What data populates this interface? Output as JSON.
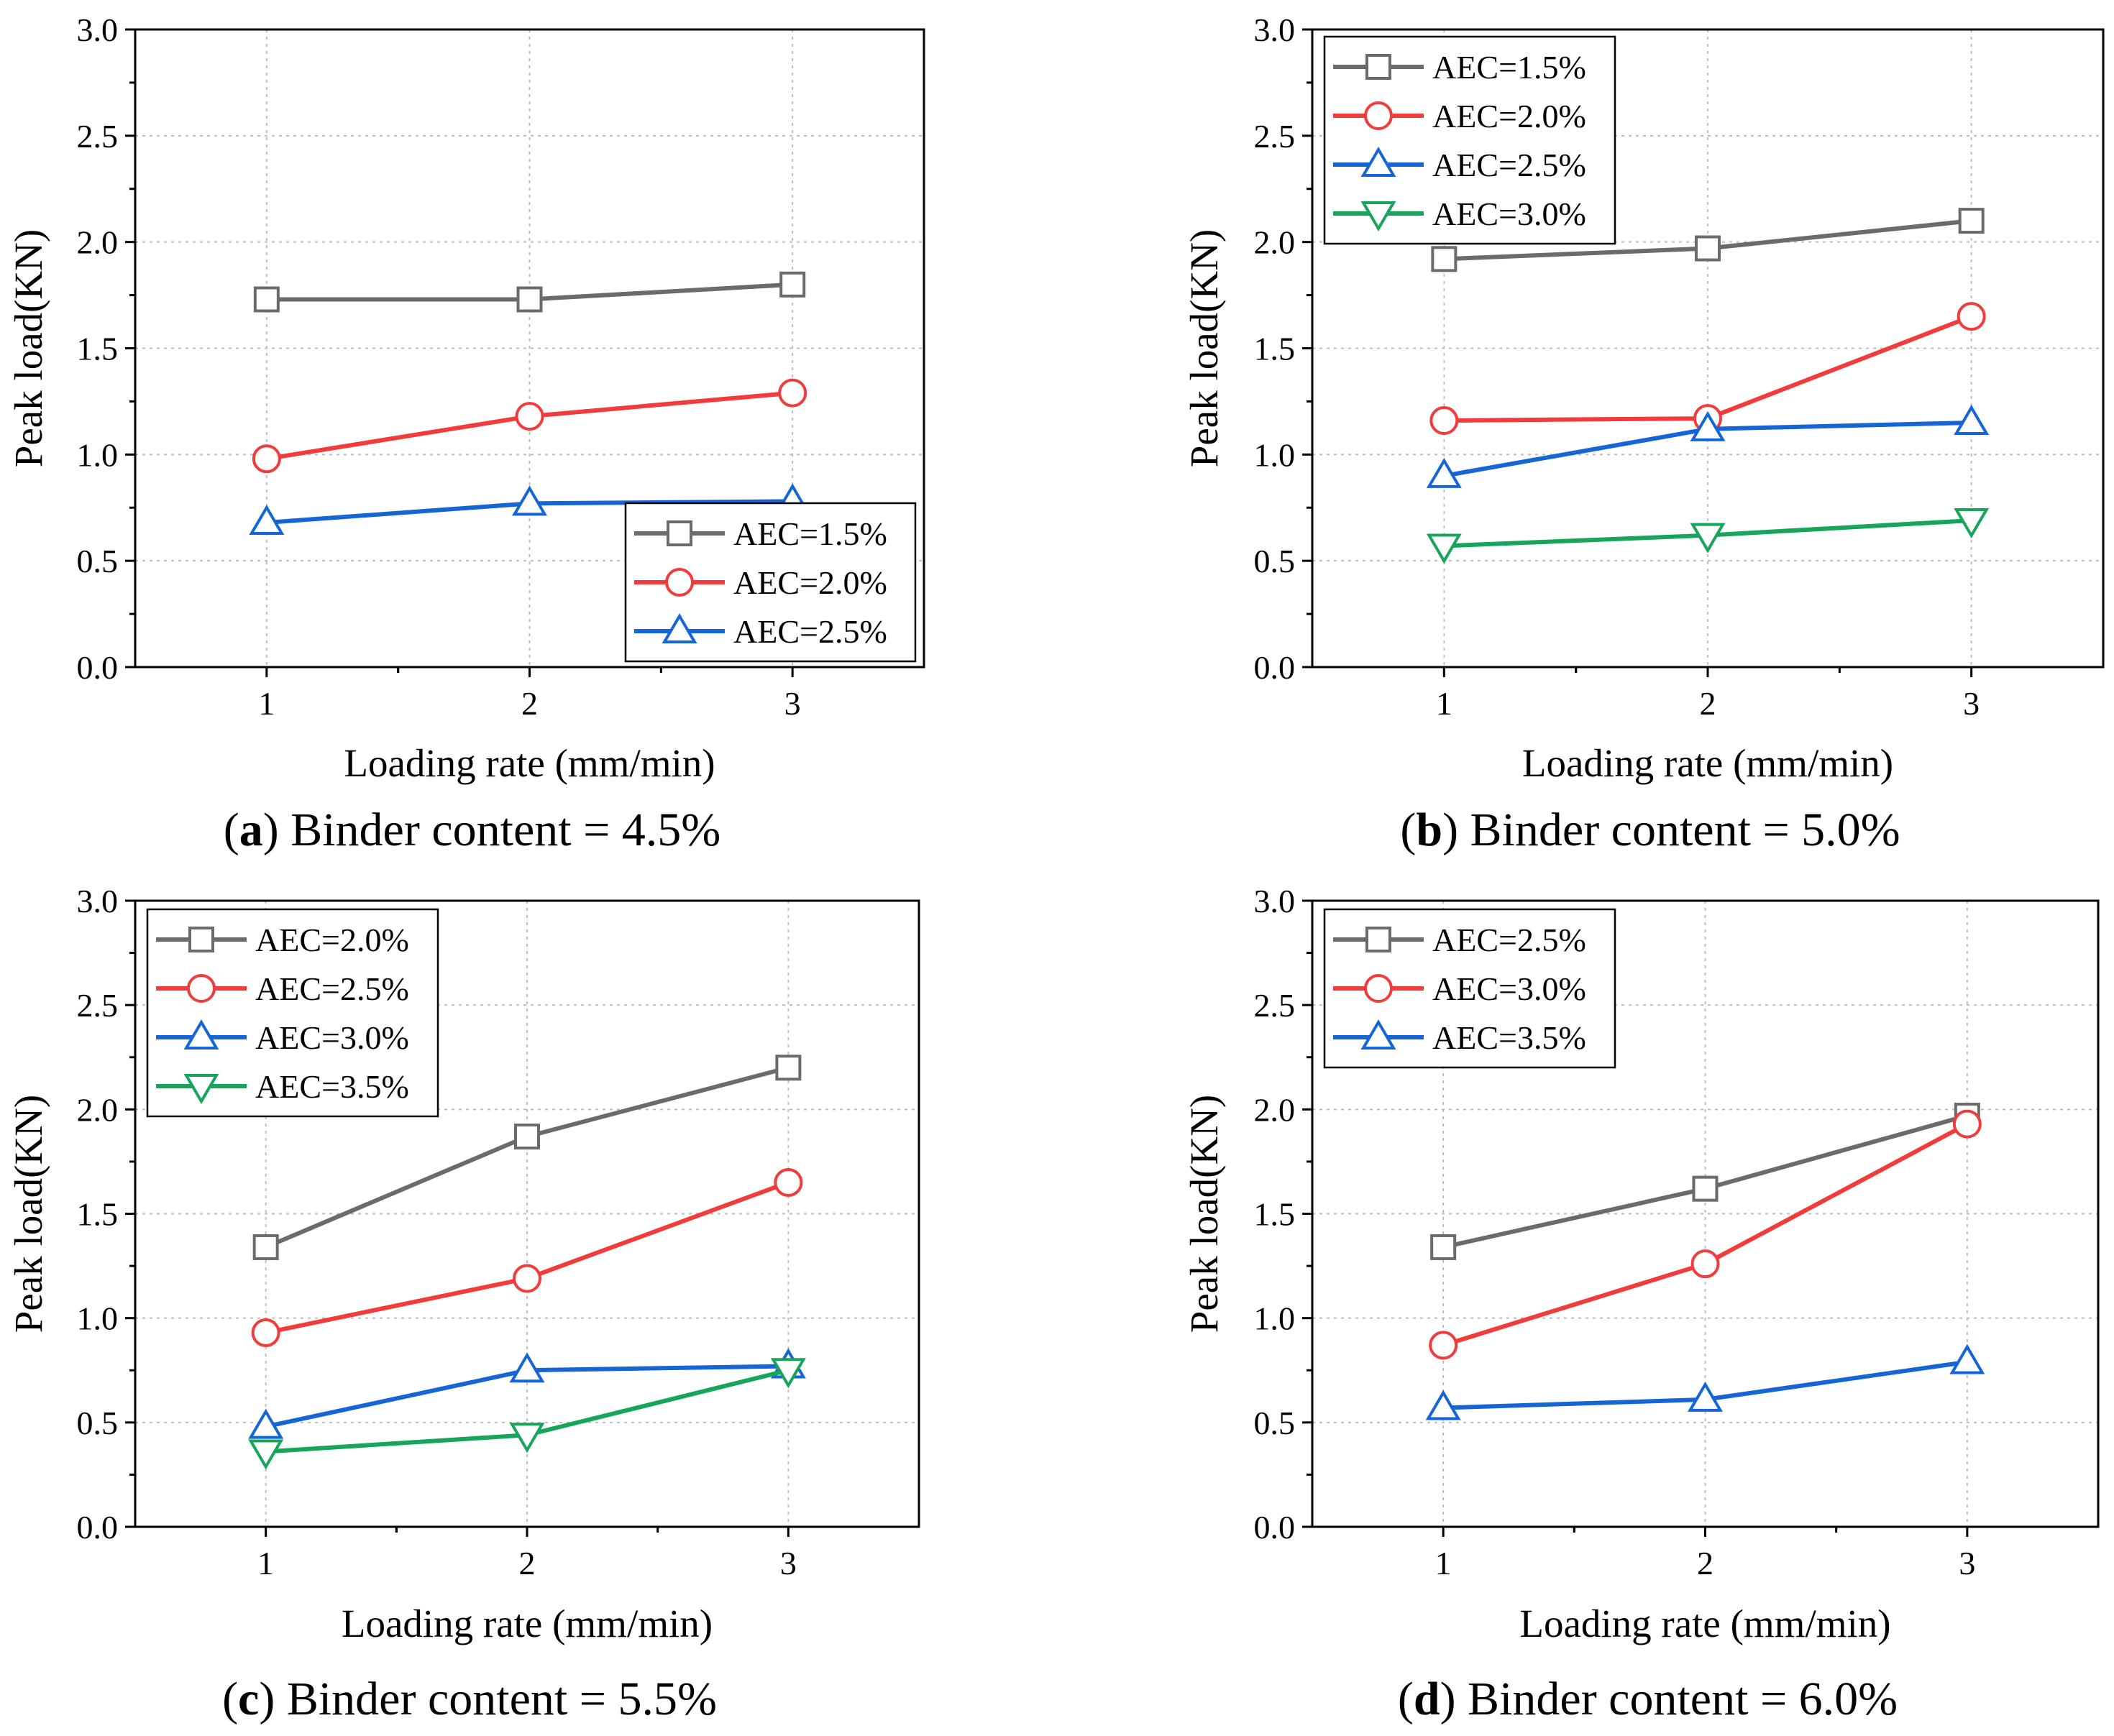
{
  "figure": {
    "colors": {
      "gray": "#6b6b6b",
      "red": "#f23b3b",
      "blue": "#1565d6",
      "green": "#16a55a"
    }
  },
  "chart_data": [
    {
      "type": "line",
      "panel": "a",
      "caption_letter": "a",
      "caption_text": "Binder content = 4.5%",
      "xlabel": "Loading rate (mm/min)",
      "ylabel": "Peak load(KN)",
      "xlim": [
        0.5,
        3.5
      ],
      "ylim": [
        0,
        3.0
      ],
      "x": [
        1,
        2,
        3
      ],
      "x_ticks": [
        "1",
        "2",
        "3"
      ],
      "y_ticks": [
        "0.0",
        "0.5",
        "1.0",
        "1.5",
        "2.0",
        "2.5",
        "3.0"
      ],
      "grid": true,
      "legend_position": "bottom-right",
      "series": [
        {
          "name": "AEC=1.5%",
          "marker": "square",
          "color": "gray",
          "values": [
            1.73,
            1.73,
            1.8
          ]
        },
        {
          "name": "AEC=2.0%",
          "marker": "circle",
          "color": "red",
          "values": [
            0.98,
            1.18,
            1.29
          ]
        },
        {
          "name": "AEC=2.5%",
          "marker": "triangle-up",
          "color": "blue",
          "values": [
            0.68,
            0.77,
            0.78
          ]
        }
      ]
    },
    {
      "type": "line",
      "panel": "b",
      "caption_letter": "b",
      "caption_text": "Binder content = 5.0%",
      "xlabel": "Loading rate (mm/min)",
      "ylabel": "Peak load(KN)",
      "xlim": [
        0.5,
        3.5
      ],
      "ylim": [
        0,
        3.0
      ],
      "x": [
        1,
        2,
        3
      ],
      "x_ticks": [
        "1",
        "2",
        "3"
      ],
      "y_ticks": [
        "0.0",
        "0.5",
        "1.0",
        "1.5",
        "2.0",
        "2.5",
        "3.0"
      ],
      "grid": true,
      "legend_position": "top-left",
      "series": [
        {
          "name": "AEC=1.5%",
          "marker": "square",
          "color": "gray",
          "values": [
            1.92,
            1.97,
            2.1
          ]
        },
        {
          "name": "AEC=2.0%",
          "marker": "circle",
          "color": "red",
          "values": [
            1.16,
            1.17,
            1.65
          ]
        },
        {
          "name": "AEC=2.5%",
          "marker": "triangle-up",
          "color": "blue",
          "values": [
            0.9,
            1.12,
            1.15
          ]
        },
        {
          "name": "AEC=3.0%",
          "marker": "triangle-down",
          "color": "green",
          "values": [
            0.57,
            0.62,
            0.69
          ]
        }
      ]
    },
    {
      "type": "line",
      "panel": "c",
      "caption_letter": "c",
      "caption_text": "Binder content = 5.5%",
      "xlabel": "Loading rate (mm/min)",
      "ylabel": "Peak load(KN)",
      "xlim": [
        0.5,
        3.5
      ],
      "ylim": [
        0,
        3.0
      ],
      "x": [
        1,
        2,
        3
      ],
      "x_ticks": [
        "1",
        "2",
        "3"
      ],
      "y_ticks": [
        "0.0",
        "0.5",
        "1.0",
        "1.5",
        "2.0",
        "2.5",
        "3.0"
      ],
      "grid": true,
      "legend_position": "top-left",
      "series": [
        {
          "name": "AEC=2.0%",
          "marker": "square",
          "color": "gray",
          "values": [
            1.34,
            1.87,
            2.2
          ]
        },
        {
          "name": "AEC=2.5%",
          "marker": "circle",
          "color": "red",
          "values": [
            0.93,
            1.19,
            1.65
          ]
        },
        {
          "name": "AEC=3.0%",
          "marker": "triangle-up",
          "color": "blue",
          "values": [
            0.48,
            0.75,
            0.77
          ]
        },
        {
          "name": "AEC=3.5%",
          "marker": "triangle-down",
          "color": "green",
          "values": [
            0.36,
            0.44,
            0.75
          ]
        }
      ]
    },
    {
      "type": "line",
      "panel": "d",
      "caption_letter": "d",
      "caption_text": "Binder content = 6.0%",
      "xlabel": "Loading rate (mm/min)",
      "ylabel": "Peak load(KN)",
      "xlim": [
        0.5,
        3.5
      ],
      "ylim": [
        0,
        3.0
      ],
      "x": [
        1,
        2,
        3
      ],
      "x_ticks": [
        "1",
        "2",
        "3"
      ],
      "y_ticks": [
        "0.0",
        "0.5",
        "1.0",
        "1.5",
        "2.0",
        "2.5",
        "3.0"
      ],
      "grid": true,
      "legend_position": "top-left",
      "series": [
        {
          "name": "AEC=2.5%",
          "marker": "square",
          "color": "gray",
          "values": [
            1.34,
            1.62,
            1.97
          ]
        },
        {
          "name": "AEC=3.0%",
          "marker": "circle",
          "color": "red",
          "values": [
            0.87,
            1.26,
            1.93
          ]
        },
        {
          "name": "AEC=3.5%",
          "marker": "triangle-up",
          "color": "blue",
          "values": [
            0.57,
            0.61,
            0.79
          ]
        }
      ]
    }
  ]
}
